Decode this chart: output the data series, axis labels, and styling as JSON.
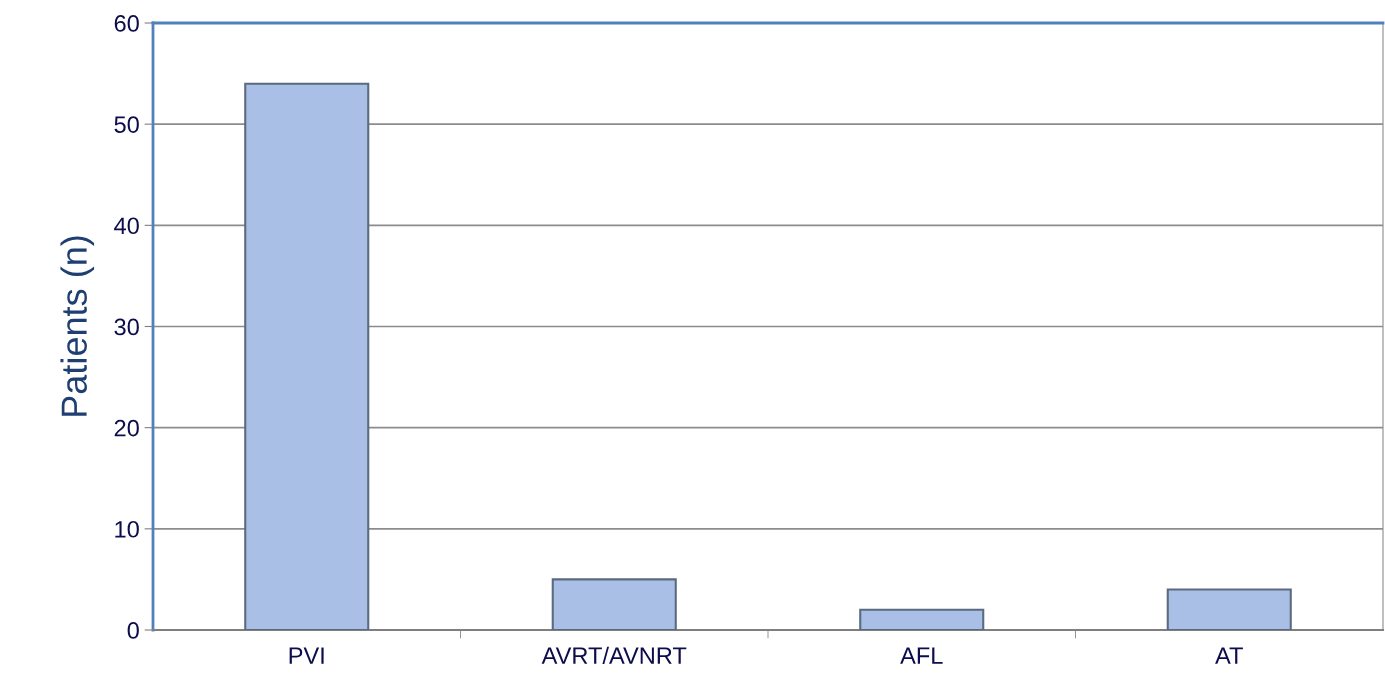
{
  "chart_data": {
    "type": "bar",
    "ylabel": "Patients (n)",
    "categories": [
      "PVI",
      "AVRT/AVNRT",
      "AFL",
      "AT"
    ],
    "values": [
      54,
      5,
      2,
      4
    ],
    "color": "#a9bfe6",
    "ylim": [
      0,
      60
    ],
    "yticks": [
      0,
      10,
      20,
      30,
      40,
      50,
      60
    ],
    "grid": "y",
    "legend": false
  }
}
